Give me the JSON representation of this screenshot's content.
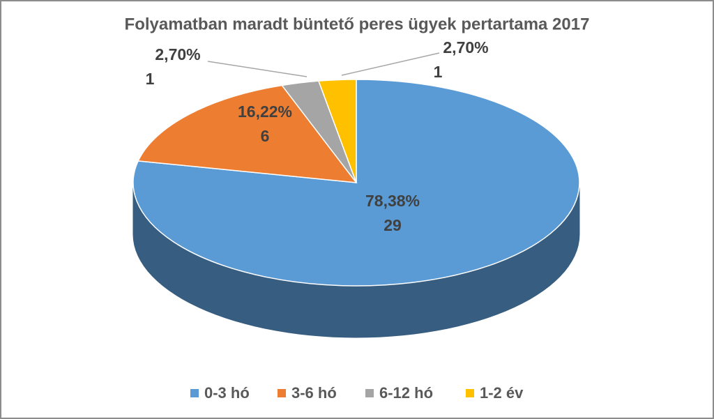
{
  "chart_data": {
    "type": "pie3d",
    "title": "Folyamatban maradt büntető peres ügyek pertartama 2017",
    "categories": [
      "0-3 hó",
      "3-6 hó",
      "6-12 hó",
      "1-2 év"
    ],
    "values": [
      29,
      6,
      1,
      1
    ],
    "percentages": [
      78.38,
      16.22,
      2.7,
      2.7
    ],
    "percentage_labels": [
      "78,38%",
      "16,22%",
      "2,70%",
      "2,70%"
    ],
    "colors": [
      "#5b9bd5",
      "#ed7d31",
      "#a5a5a5",
      "#ffc000"
    ],
    "legend": "bottom"
  }
}
